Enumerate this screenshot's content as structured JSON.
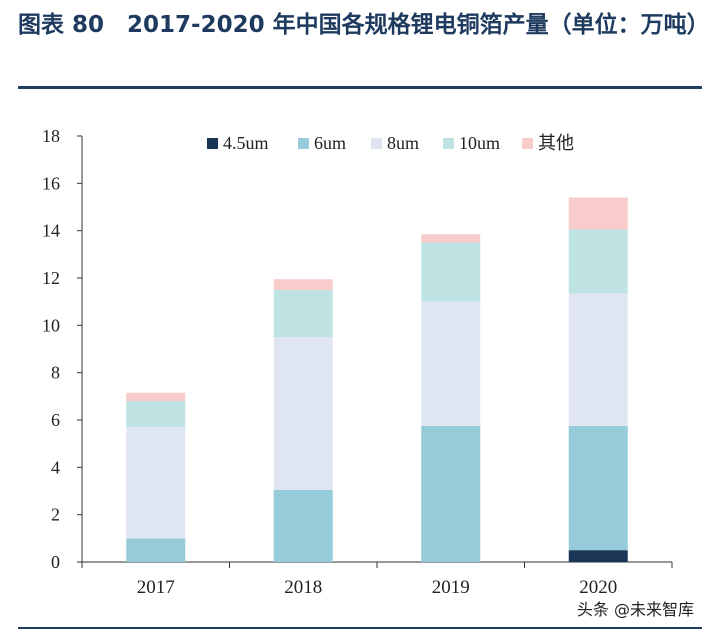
{
  "title": "图表 80　2017-2020 年中国各规格锂电铜箔产量（单位：万吨）",
  "watermark": "头条 @未来智库",
  "colors": {
    "title": "#1e3a5f",
    "rule": "#1f3d5c",
    "axis": "#333333"
  },
  "chart_data": {
    "type": "bar",
    "stacked": true,
    "title": "",
    "xlabel": "",
    "ylabel": "",
    "categories": [
      "2017",
      "2018",
      "2019",
      "2020"
    ],
    "ylim": [
      0,
      18
    ],
    "yticks": [
      0,
      2,
      4,
      6,
      8,
      10,
      12,
      14,
      16,
      18
    ],
    "grid": false,
    "legend": "top",
    "series": [
      {
        "name": "4.5um",
        "color": "#1b3556",
        "values": [
          0,
          0,
          0,
          0.5
        ]
      },
      {
        "name": "6um",
        "color": "#96cbd9",
        "values": [
          1.0,
          3.05,
          5.75,
          5.25
        ]
      },
      {
        "name": "8um",
        "color": "#dfe6f2",
        "values": [
          4.7,
          6.45,
          5.25,
          5.6
        ]
      },
      {
        "name": "10um",
        "color": "#bfe3e3",
        "values": [
          1.1,
          2.0,
          2.5,
          2.7
        ]
      },
      {
        "name": "其他",
        "color": "#f9cccc",
        "values": [
          0.35,
          0.45,
          0.35,
          1.35
        ]
      }
    ]
  }
}
